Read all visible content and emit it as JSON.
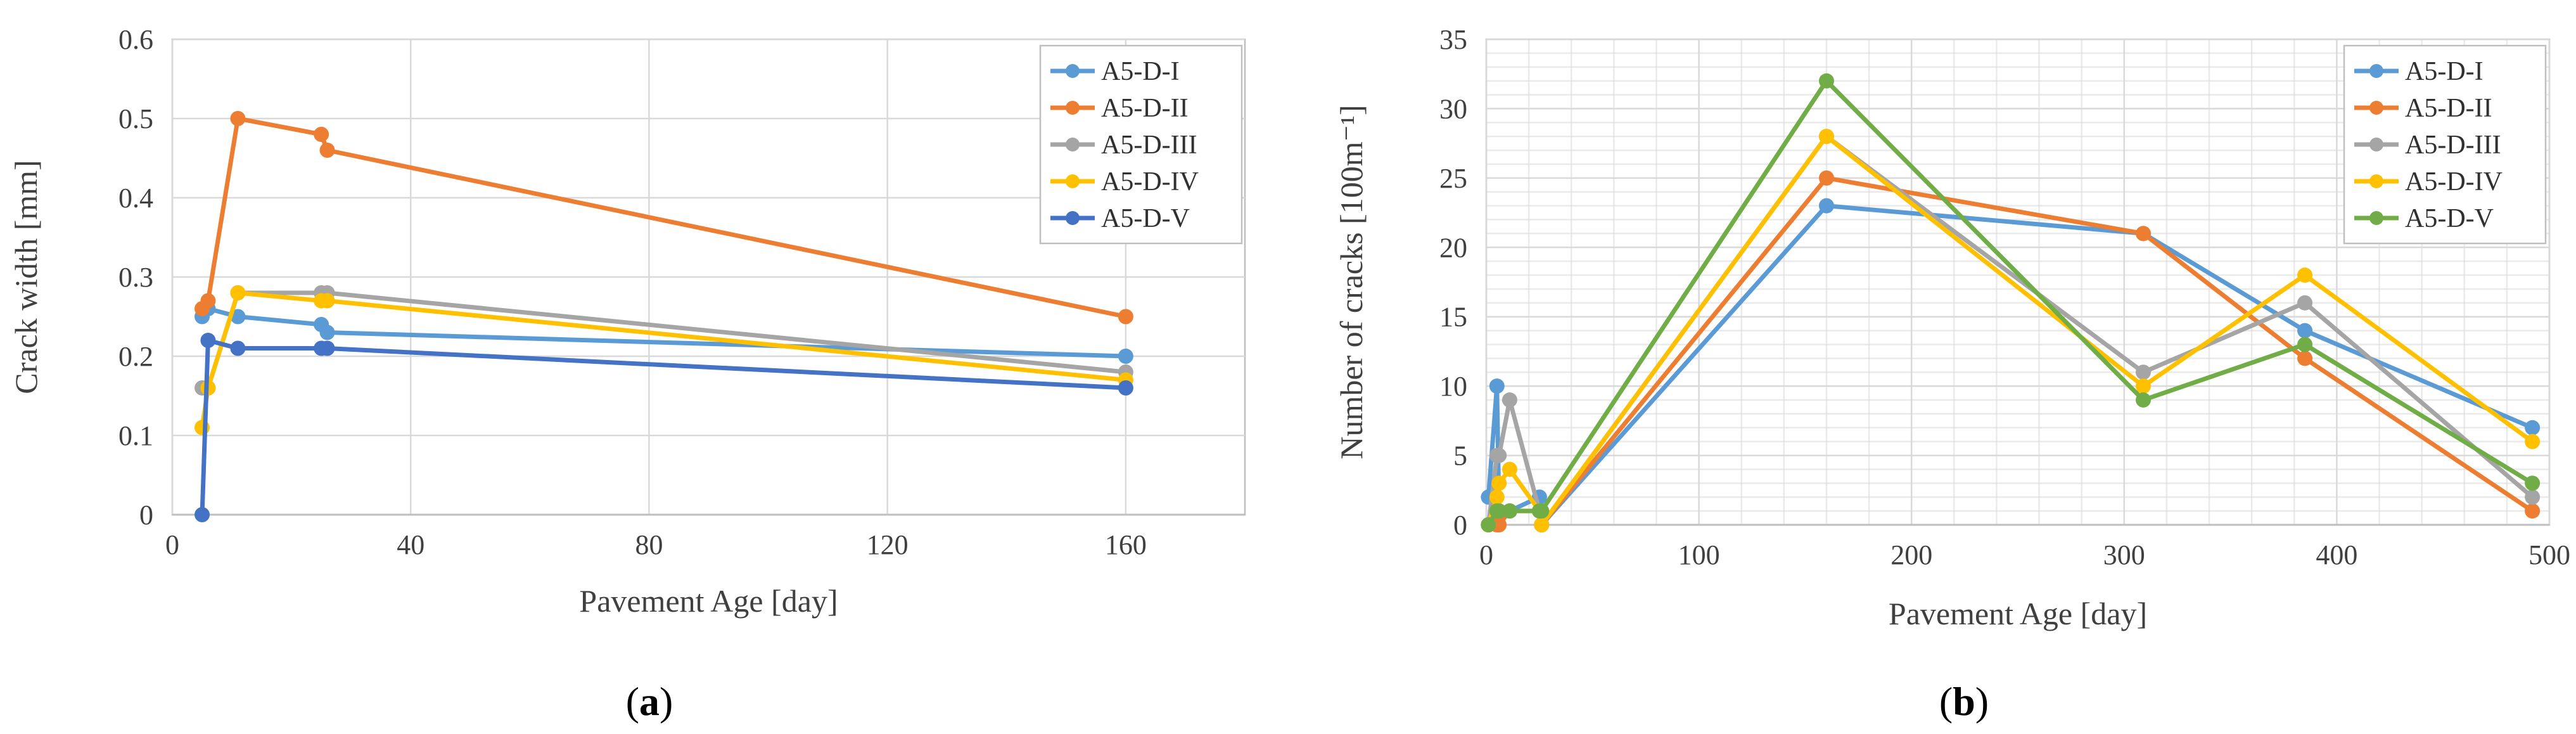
{
  "chart_data": [
    {
      "type": "line",
      "panel_label": "a",
      "title": "",
      "xlabel": "Pavement Age [day]",
      "ylabel": "Crack width [mm]",
      "xlim": [
        0,
        180
      ],
      "ylim": [
        0,
        0.6
      ],
      "xticks": [
        0,
        40,
        80,
        120,
        160
      ],
      "xtick_labels": [
        "0",
        "40",
        "80",
        "120",
        "160"
      ],
      "yticks": [
        0,
        0.1,
        0.2,
        0.3,
        0.4,
        0.5,
        0.6
      ],
      "ytick_labels": [
        "0",
        "0.1",
        "0.2",
        "0.3",
        "0.4",
        "0.5",
        "0.6"
      ],
      "grid": true,
      "legend_position": "top-right",
      "series": [
        {
          "name": "A5-D-I",
          "color": "#5b9bd5",
          "x": [
            5,
            6,
            11,
            25,
            26,
            160
          ],
          "y": [
            0.25,
            0.26,
            0.25,
            0.24,
            0.23,
            0.2
          ]
        },
        {
          "name": "A5-D-II",
          "color": "#ed7d31",
          "x": [
            5,
            6,
            11,
            25,
            26,
            160
          ],
          "y": [
            0.26,
            0.27,
            0.5,
            0.48,
            0.46,
            0.25
          ]
        },
        {
          "name": "A5-D-III",
          "color": "#a5a5a5",
          "x": [
            5,
            6,
            11,
            25,
            26,
            160
          ],
          "y": [
            0.16,
            0.16,
            0.28,
            0.28,
            0.28,
            0.18
          ]
        },
        {
          "name": "A5-D-IV",
          "color": "#ffc000",
          "x": [
            5,
            6,
            11,
            25,
            26,
            160
          ],
          "y": [
            0.11,
            0.16,
            0.28,
            0.27,
            0.27,
            0.17
          ]
        },
        {
          "name": "A5-D-V",
          "color": "#4472c4",
          "x": [
            5,
            6,
            11,
            25,
            26,
            160
          ],
          "y": [
            0.0,
            0.22,
            0.21,
            0.21,
            0.21,
            0.16
          ]
        }
      ]
    },
    {
      "type": "line",
      "panel_label": "b",
      "title": "",
      "xlabel": "Pavement Age [day]",
      "ylabel": "Number of cracks [100m⁻¹]",
      "xlim": [
        0,
        500
      ],
      "ylim": [
        0,
        35
      ],
      "xticks": [
        0,
        100,
        200,
        300,
        400,
        500
      ],
      "xtick_labels": [
        "0",
        "100",
        "200",
        "300",
        "400",
        "500"
      ],
      "yticks": [
        0,
        5,
        10,
        15,
        20,
        25,
        30,
        35
      ],
      "ytick_labels": [
        "0",
        "5",
        "10",
        "15",
        "20",
        "25",
        "30",
        "35"
      ],
      "grid": true,
      "legend_position": "top-right",
      "series": [
        {
          "name": "A5-D-I",
          "color": "#5b9bd5",
          "x": [
            1,
            5,
            6,
            11,
            25,
            26,
            160,
            309,
            385,
            492
          ],
          "y": [
            2,
            10,
            1,
            1,
            2,
            0,
            23,
            21,
            14,
            7
          ]
        },
        {
          "name": "A5-D-II",
          "color": "#ed7d31",
          "x": [
            1,
            5,
            6,
            11,
            25,
            26,
            160,
            309,
            385,
            492
          ],
          "y": [
            0,
            0,
            0,
            1,
            1,
            0,
            25,
            21,
            12,
            1
          ]
        },
        {
          "name": "A5-D-III",
          "color": "#a5a5a5",
          "x": [
            1,
            5,
            6,
            11,
            25,
            26,
            160,
            309,
            385,
            492
          ],
          "y": [
            0,
            5,
            5,
            9,
            1,
            0,
            28,
            11,
            16,
            2
          ]
        },
        {
          "name": "A5-D-IV",
          "color": "#ffc000",
          "x": [
            1,
            5,
            6,
            11,
            25,
            26,
            160,
            309,
            385,
            492
          ],
          "y": [
            0,
            2,
            3,
            4,
            1,
            0,
            28,
            10,
            18,
            6
          ]
        },
        {
          "name": "A5-D-V",
          "color": "#70ad47",
          "x": [
            1,
            5,
            6,
            11,
            25,
            26,
            160,
            309,
            385,
            492
          ],
          "y": [
            0,
            1,
            1,
            1,
            1,
            1,
            32,
            9,
            13,
            3
          ]
        }
      ]
    }
  ]
}
